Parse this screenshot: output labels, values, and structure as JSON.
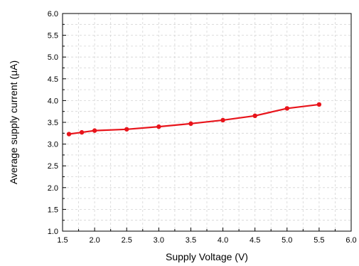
{
  "chart_data": {
    "type": "line",
    "title": "",
    "xlabel": "Supply Voltage (V)",
    "ylabel": "Average supply current (μA)",
    "xlim": [
      1.5,
      6.0
    ],
    "ylim": [
      1.0,
      6.0
    ],
    "x_ticks": [
      "1.5",
      "2.0",
      "2.5",
      "3.0",
      "3.5",
      "4.0",
      "4.5",
      "5.0",
      "5.5",
      "6.0"
    ],
    "y_ticks": [
      "1.0",
      "1.5",
      "2.0",
      "2.5",
      "3.0",
      "3.5",
      "4.0",
      "4.5",
      "5.0",
      "5.5",
      "6.0"
    ],
    "grid": true,
    "legend": "none",
    "series": [
      {
        "color": "#e8141b",
        "x": [
          1.6,
          1.8,
          2.0,
          2.5,
          3.0,
          3.5,
          4.0,
          4.5,
          5.0,
          5.5
        ],
        "y": [
          3.23,
          3.27,
          3.31,
          3.34,
          3.4,
          3.47,
          3.55,
          3.65,
          3.82,
          3.91
        ]
      }
    ]
  }
}
